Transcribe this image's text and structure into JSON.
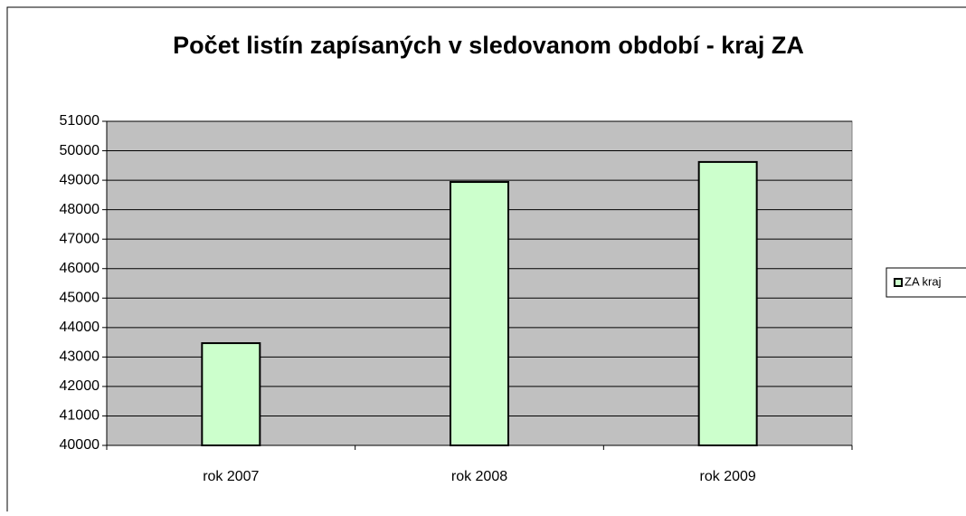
{
  "chart_data": {
    "type": "bar",
    "title": "Počet listín zapísaných v sledovanom období - kraj ZA",
    "categories": [
      "rok 2007",
      "rok 2008",
      "rok 2009"
    ],
    "series": [
      {
        "name": "ZA kraj",
        "color": "#ccffcc",
        "values": [
          43470,
          48940,
          49620
        ]
      }
    ],
    "ylim": [
      40000,
      51000
    ],
    "yticks": [
      40000,
      41000,
      42000,
      43000,
      44000,
      45000,
      46000,
      47000,
      48000,
      49000,
      50000,
      51000
    ],
    "grid": true,
    "legend": "right",
    "plot_background": "#c0c0c0"
  }
}
